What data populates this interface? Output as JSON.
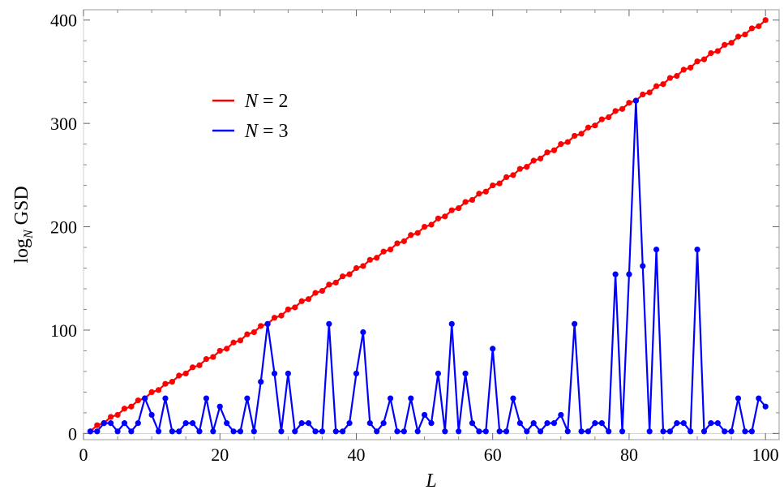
{
  "chart_data": {
    "type": "line",
    "title": "",
    "xlabel": "L",
    "ylabel_main": "log",
    "ylabel_sub": "N",
    "ylabel_tail": " GSD",
    "xlim": [
      0,
      102
    ],
    "ylim": [
      -6,
      410
    ],
    "xticks": [
      0,
      20,
      40,
      60,
      80,
      100
    ],
    "xtick_labels": [
      "0",
      "20",
      "40",
      "60",
      "80",
      "100"
    ],
    "yticks": [
      0,
      100,
      200,
      300,
      400
    ],
    "ytick_labels": [
      "0",
      "100",
      "200",
      "300",
      "400"
    ],
    "grid": false,
    "legend_position": "upper-left",
    "series": [
      {
        "name": "N = 2",
        "legend_var": "N",
        "legend_rest": " = 2",
        "color": "#ff0000",
        "x": [
          1,
          2,
          3,
          4,
          5,
          6,
          7,
          8,
          9,
          10,
          11,
          12,
          13,
          14,
          15,
          16,
          17,
          18,
          19,
          20,
          21,
          22,
          23,
          24,
          25,
          26,
          27,
          28,
          29,
          30,
          31,
          32,
          33,
          34,
          35,
          36,
          37,
          38,
          39,
          40,
          41,
          42,
          43,
          44,
          45,
          46,
          47,
          48,
          49,
          50,
          51,
          52,
          53,
          54,
          55,
          56,
          57,
          58,
          59,
          60,
          61,
          62,
          63,
          64,
          65,
          66,
          67,
          68,
          69,
          70,
          71,
          72,
          73,
          74,
          75,
          76,
          77,
          78,
          79,
          80,
          81,
          82,
          83,
          84,
          85,
          86,
          87,
          88,
          89,
          90,
          91,
          92,
          93,
          94,
          95,
          96,
          97,
          98,
          99,
          100
        ],
        "y": [
          2,
          8,
          10,
          16,
          18,
          24,
          26,
          32,
          34,
          40,
          42,
          48,
          50,
          56,
          58,
          64,
          66,
          72,
          74,
          80,
          82,
          88,
          90,
          96,
          98,
          104,
          106,
          112,
          114,
          120,
          122,
          128,
          130,
          136,
          138,
          144,
          146,
          152,
          154,
          160,
          162,
          168,
          170,
          176,
          178,
          184,
          186,
          192,
          194,
          200,
          202,
          208,
          210,
          216,
          218,
          224,
          226,
          232,
          234,
          240,
          242,
          248,
          250,
          256,
          258,
          264,
          266,
          272,
          274,
          280,
          282,
          288,
          290,
          296,
          298,
          304,
          306,
          312,
          314,
          320,
          322,
          328,
          330,
          336,
          338,
          344,
          346,
          352,
          354,
          360,
          362,
          368,
          370,
          376,
          378,
          384,
          386,
          392,
          394,
          400
        ]
      },
      {
        "name": "N = 3",
        "legend_var": "N",
        "legend_rest": " = 3",
        "color": "#0000ff",
        "x": [
          1,
          2,
          3,
          4,
          5,
          6,
          7,
          8,
          9,
          10,
          11,
          12,
          13,
          14,
          15,
          16,
          17,
          18,
          19,
          20,
          21,
          22,
          23,
          24,
          25,
          26,
          27,
          28,
          29,
          30,
          31,
          32,
          33,
          34,
          35,
          36,
          37,
          38,
          39,
          40,
          41,
          42,
          43,
          44,
          45,
          46,
          47,
          48,
          49,
          50,
          51,
          52,
          53,
          54,
          55,
          56,
          57,
          58,
          59,
          60,
          61,
          62,
          63,
          64,
          65,
          66,
          67,
          68,
          69,
          70,
          71,
          72,
          73,
          74,
          75,
          76,
          77,
          78,
          79,
          80,
          81,
          82,
          83,
          84,
          85,
          86,
          87,
          88,
          89,
          90,
          91,
          92,
          93,
          94,
          95,
          96,
          97,
          98,
          99,
          100
        ],
        "y": [
          2,
          2,
          10,
          10,
          2,
          10,
          2,
          10,
          34,
          18,
          2,
          34,
          2,
          2,
          10,
          10,
          2,
          34,
          2,
          26,
          10,
          2,
          2,
          34,
          2,
          50,
          106,
          58,
          2,
          58,
          2,
          10,
          10,
          2,
          2,
          106,
          2,
          2,
          10,
          58,
          98,
          10,
          2,
          10,
          34,
          2,
          2,
          34,
          2,
          18,
          10,
          58,
          2,
          106,
          2,
          58,
          10,
          2,
          2,
          82,
          2,
          2,
          34,
          10,
          2,
          10,
          2,
          10,
          10,
          18,
          2,
          106,
          2,
          2,
          10,
          10,
          2,
          154,
          2,
          154,
          322,
          162,
          2,
          178,
          2,
          2,
          10,
          10,
          2,
          178,
          2,
          10,
          10,
          2,
          2,
          34,
          2,
          2,
          34,
          26
        ]
      }
    ]
  }
}
